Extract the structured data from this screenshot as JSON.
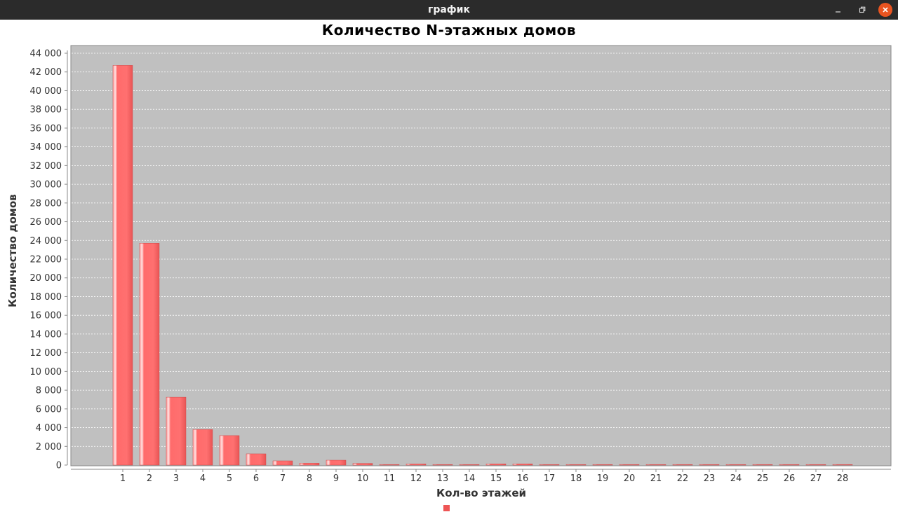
{
  "window": {
    "title": "график",
    "minimize_icon": "minimize-icon",
    "maximize_icon": "maximize-icon",
    "close_icon": "close-icon"
  },
  "colors": {
    "titlebar": "#2b2b2b",
    "plot_background": "#c0c0c0",
    "bar": "#ff6b6b",
    "bar_dark": "#e85c5c",
    "bar_light": "#ffd0d0",
    "grid": "#ffffff",
    "close_button": "#e95420"
  },
  "chart_data": {
    "type": "bar",
    "title": "Количество N-этажных домов",
    "xlabel": "Кол-во этажей",
    "ylabel": "Количество домов",
    "categories": [
      "1",
      "2",
      "3",
      "4",
      "5",
      "6",
      "7",
      "8",
      "9",
      "10",
      "11",
      "12",
      "13",
      "14",
      "15",
      "16",
      "17",
      "18",
      "19",
      "20",
      "21",
      "22",
      "23",
      "24",
      "25",
      "26",
      "27",
      "28"
    ],
    "values": [
      42700,
      23700,
      7250,
      3800,
      3150,
      1200,
      450,
      200,
      520,
      180,
      40,
      120,
      40,
      60,
      130,
      130,
      50,
      10,
      5,
      5,
      5,
      5,
      2,
      2,
      2,
      2,
      2,
      2
    ],
    "ylim": [
      0,
      44000
    ],
    "yticks": [
      0,
      2000,
      4000,
      6000,
      8000,
      10000,
      12000,
      14000,
      16000,
      18000,
      20000,
      22000,
      24000,
      26000,
      28000,
      30000,
      32000,
      34000,
      36000,
      38000,
      40000,
      42000,
      44000
    ],
    "ytick_labels": [
      "0",
      "2 000",
      "4 000",
      "6 000",
      "8 000",
      "10 000",
      "12 000",
      "14 000",
      "16 000",
      "18 000",
      "20 000",
      "22 000",
      "24 000",
      "26 000",
      "28 000",
      "30 000",
      "32 000",
      "34 000",
      "36 000",
      "38 000",
      "40 000",
      "42 000",
      "44 000"
    ],
    "grid": true,
    "legend": "bottom-center"
  }
}
